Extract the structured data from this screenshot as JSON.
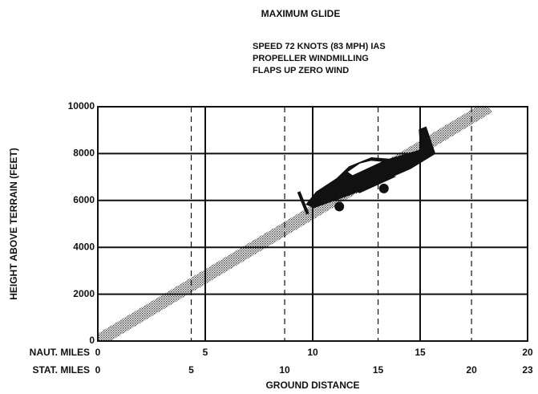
{
  "chart_data": {
    "type": "line",
    "title": "MAXIMUM GLIDE",
    "subtitle": [
      "SPEED 72 KNOTS (83 MPH) IAS",
      "PROPELLER WINDMILLING",
      "FLAPS UP ZERO WIND"
    ],
    "ylabel": "HEIGHT ABOVE TERRAIN (FEET)",
    "xlabel": "GROUND DISTANCE",
    "xaxis_label": "NAUT. MILES",
    "x2axis_label": "STAT. MILES",
    "x": [
      0,
      18.2
    ],
    "values": [
      0,
      10000
    ],
    "color": "#555555",
    "xlim": [
      0,
      20
    ],
    "xticks": [
      0,
      5,
      10,
      15,
      20
    ],
    "x2lim": [
      0,
      23
    ],
    "x2ticks": [
      0,
      5,
      10,
      15,
      20,
      23
    ],
    "ylim": [
      0,
      10000
    ],
    "yticks": [
      0,
      2000,
      4000,
      6000,
      8000,
      10000
    ],
    "grid": true
  }
}
